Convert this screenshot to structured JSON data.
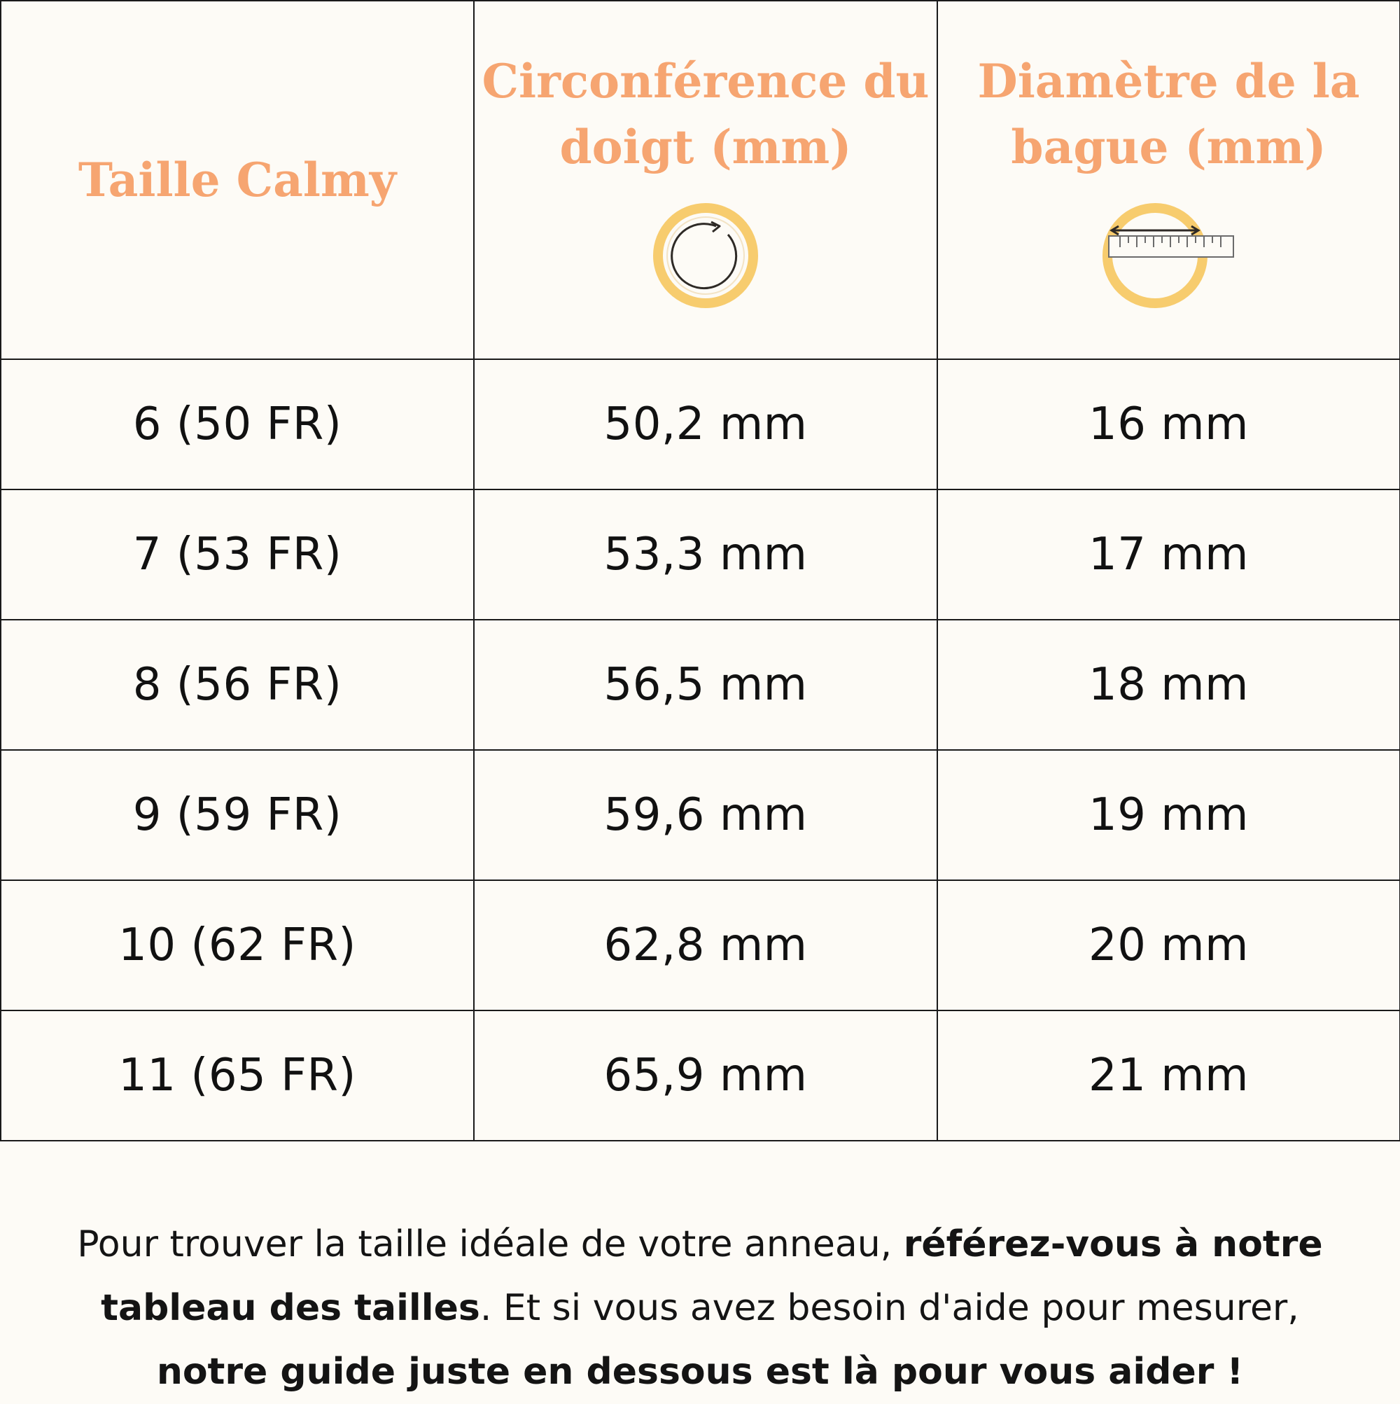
{
  "table": {
    "headers": [
      {
        "lines": [
          "Taille Calmy"
        ],
        "icon": null
      },
      {
        "lines": [
          "Circonférence du",
          "doigt (mm)"
        ],
        "icon": "circumference-icon"
      },
      {
        "lines": [
          "Diamètre de la",
          "bague (mm)"
        ],
        "icon": "diameter-ruler-icon"
      }
    ],
    "rows": [
      {
        "size": "6 (50 FR)",
        "circumference": "50,2 mm",
        "diameter": "16 mm"
      },
      {
        "size": "7 (53 FR)",
        "circumference": "53,3 mm",
        "diameter": "17 mm"
      },
      {
        "size": "8 (56 FR)",
        "circumference": "56,5 mm",
        "diameter": "18 mm"
      },
      {
        "size": "9 (59 FR)",
        "circumference": "59,6 mm",
        "diameter": "19 mm"
      },
      {
        "size": "10 (62 FR)",
        "circumference": "62,8 mm",
        "diameter": "20 mm"
      },
      {
        "size": "11 (65 FR)",
        "circumference": "65,9 mm",
        "diameter": "21 mm"
      }
    ]
  },
  "note": {
    "part1": "Pour trouver la taille idéale de votre anneau, ",
    "part2_bold": "référez-vous à notre tableau des tailles",
    "part3": ". Et si vous avez besoin d'aide pour mesurer, ",
    "part4_bold": "notre guide juste en dessous est là pour vous aider !"
  },
  "colors": {
    "header_text": "#f6a571",
    "ring_gold": "#f7cc6e",
    "border": "#1a1a1a",
    "background": "#fdfbf6"
  }
}
